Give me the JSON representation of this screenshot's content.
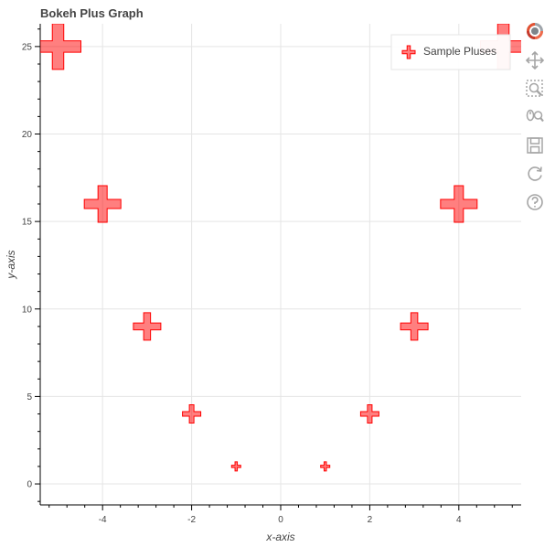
{
  "chart_data": {
    "type": "scatter",
    "title": "Bokeh Plus Graph",
    "xlabel": "x-axis",
    "ylabel": "y-axis",
    "xlim": [
      -5.4,
      5.4
    ],
    "ylim": [
      -1.2,
      26.3
    ],
    "x_ticks": [
      -4,
      -2,
      0,
      2,
      4
    ],
    "y_ticks": [
      0,
      5,
      10,
      15,
      20,
      25
    ],
    "grid": true,
    "legend": {
      "placement": "top-right",
      "entries": [
        "Sample Pluses"
      ]
    },
    "marker": "plus",
    "color": "#ff0000",
    "series": [
      {
        "name": "Sample Pluses",
        "x": [
          -5,
          -4,
          -3,
          -2,
          -1,
          1,
          2,
          3,
          4,
          5
        ],
        "y": [
          25,
          16,
          9,
          4,
          1,
          1,
          4,
          9,
          16,
          25
        ],
        "sizes": [
          50,
          40,
          30,
          20,
          10,
          10,
          20,
          30,
          40,
          50
        ]
      }
    ]
  },
  "toolbar": {
    "tools": [
      "bokeh-logo-icon",
      "pan-icon",
      "box-zoom-icon",
      "wheel-zoom-icon",
      "save-icon",
      "reset-icon",
      "help-icon"
    ]
  }
}
